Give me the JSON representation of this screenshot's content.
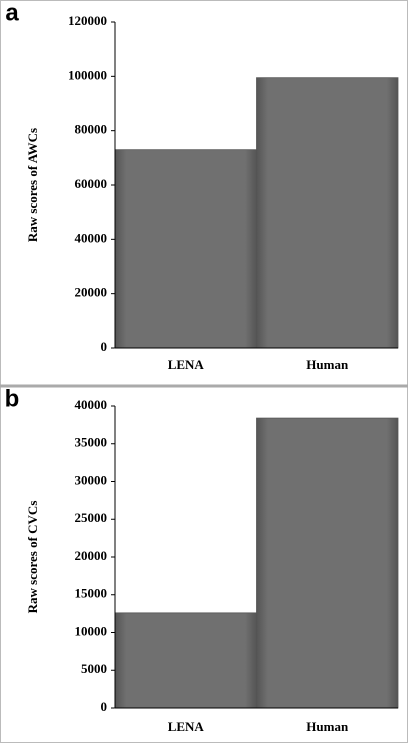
{
  "chart_data": [
    {
      "type": "bar",
      "label": "a",
      "ylabel": "Raw scores of AWCs",
      "categories": [
        "LENA",
        "Human"
      ],
      "values": [
        73000,
        99500
      ],
      "color": "#6e6e6e",
      "ylim": [
        0,
        120000
      ],
      "yticks": [
        0,
        20000,
        40000,
        60000,
        80000,
        100000,
        120000
      ]
    },
    {
      "type": "bar",
      "label": "b",
      "ylabel": "Raw scores of CVCs",
      "categories": [
        "LENA",
        "Human"
      ],
      "values": [
        12600,
        38400
      ],
      "color": "#6e6e6e",
      "ylim": [
        0,
        40000
      ],
      "yticks": [
        0,
        5000,
        10000,
        15000,
        20000,
        25000,
        30000,
        35000,
        40000
      ]
    }
  ]
}
